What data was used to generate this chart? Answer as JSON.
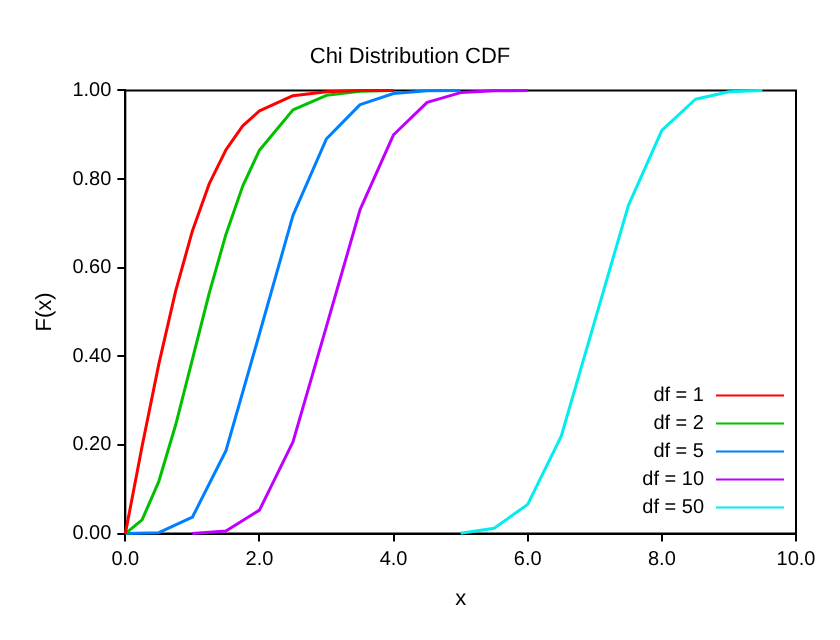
{
  "chart_data": {
    "type": "line",
    "title": "Chi Distribution CDF",
    "xlabel": "x",
    "ylabel": "F(x)",
    "xlim": [
      0,
      10
    ],
    "xticks": [
      {
        "value": 0,
        "label": "0.0"
      },
      {
        "value": 2,
        "label": "2.0"
      },
      {
        "value": 4,
        "label": "4.0"
      },
      {
        "value": 6,
        "label": "6.0"
      },
      {
        "value": 8,
        "label": "8.0"
      },
      {
        "value": 10,
        "label": "10.0"
      }
    ],
    "ylim": [
      0,
      1
    ],
    "yticks": [
      {
        "value": 0,
        "label": "0.00"
      },
      {
        "value": 0.2,
        "label": "0.20"
      },
      {
        "value": 0.4,
        "label": "0.40"
      },
      {
        "value": 0.6,
        "label": "0.60"
      },
      {
        "value": 0.8,
        "label": "0.80"
      },
      {
        "value": 1,
        "label": "1.00"
      }
    ],
    "grid": false,
    "legend": "bottom right",
    "marker": "none",
    "line_style": "solid",
    "series": [
      {
        "name": "df = 1",
        "color": "#ff0000",
        "x": [
          0,
          0.25,
          0.5,
          0.75,
          1,
          1.25,
          1.5,
          1.75,
          2,
          2.5,
          3,
          3.5,
          4
        ],
        "values": [
          0,
          0.197,
          0.383,
          0.547,
          0.683,
          0.789,
          0.866,
          0.92,
          0.954,
          0.988,
          0.997,
          1,
          1
        ]
      },
      {
        "name": "df = 2",
        "color": "#00c000",
        "x": [
          0,
          0.25,
          0.5,
          0.75,
          1,
          1.25,
          1.5,
          1.75,
          2,
          2.5,
          3,
          3.5,
          4
        ],
        "values": [
          0,
          0.031,
          0.118,
          0.245,
          0.393,
          0.542,
          0.675,
          0.784,
          0.865,
          0.956,
          0.989,
          0.998,
          1
        ]
      },
      {
        "name": "df = 5",
        "color": "#0080ff",
        "x": [
          0,
          0.5,
          1,
          1.5,
          2,
          2.5,
          3,
          3.5,
          4,
          4.5,
          5
        ],
        "values": [
          0,
          0.002,
          0.037,
          0.187,
          0.451,
          0.718,
          0.891,
          0.968,
          0.993,
          0.999,
          1
        ]
      },
      {
        "name": "df = 10",
        "color": "#c000ff",
        "x": [
          1,
          1.5,
          2,
          2.5,
          3,
          3.5,
          4,
          4.5,
          5,
          5.5,
          6
        ],
        "values": [
          0,
          0.006,
          0.053,
          0.207,
          0.468,
          0.731,
          0.9,
          0.973,
          0.995,
          0.999,
          1
        ]
      },
      {
        "name": "df = 50",
        "color": "#00eeee",
        "x": [
          5,
          5.5,
          6,
          6.5,
          7,
          7.5,
          8,
          8.5,
          9,
          9.5
        ],
        "values": [
          0.001,
          0.012,
          0.066,
          0.22,
          0.48,
          0.74,
          0.91,
          0.98,
          0.997,
          1
        ]
      }
    ]
  }
}
